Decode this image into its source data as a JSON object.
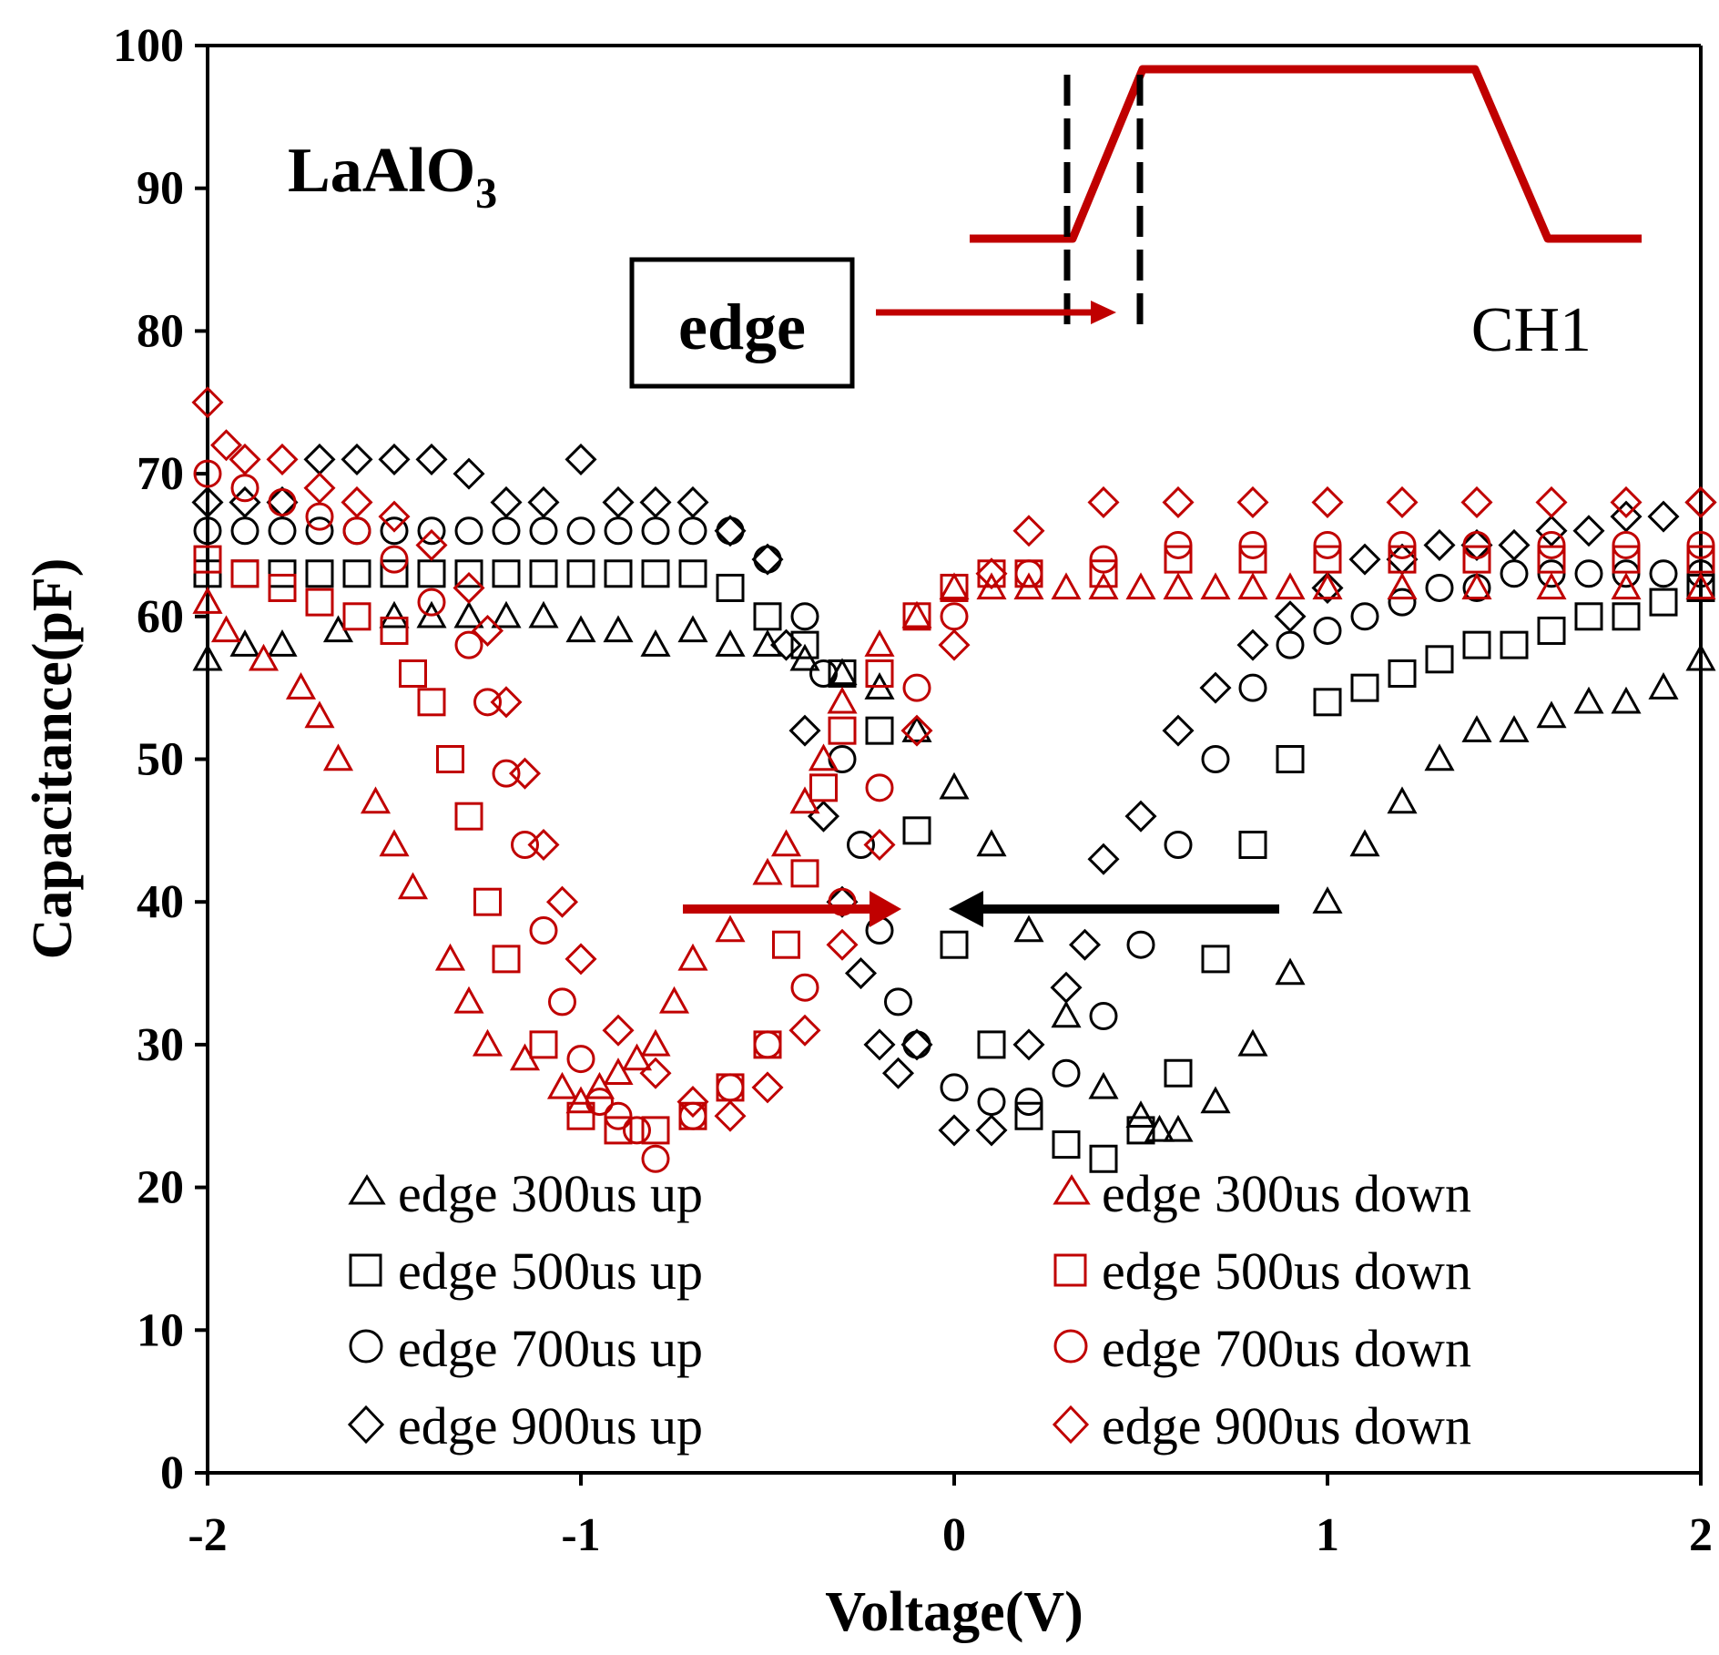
{
  "chart_data": {
    "type": "scatter",
    "title": "",
    "xlabel": "Voltage(V)",
    "ylabel": "Capacitance(pF)",
    "xlim": [
      -2,
      2
    ],
    "ylim": [
      0,
      100
    ],
    "xticks": [
      -2,
      -1,
      0,
      1,
      2
    ],
    "yticks": [
      0,
      10,
      20,
      30,
      40,
      50,
      60,
      70,
      80,
      90,
      100
    ],
    "grid": false,
    "legend_position": "bottom",
    "annotations": {
      "material": "LaAlO",
      "material_subscript": "3",
      "edge_box_label": "edge",
      "channel_label": "CH1"
    },
    "colors": {
      "up": "#000000",
      "down": "#c00000"
    },
    "series": [
      {
        "name": "edge 300us up",
        "marker": "triangle",
        "color": "#000000",
        "x": [
          -2.0,
          -1.9,
          -1.8,
          -1.65,
          -1.5,
          -1.4,
          -1.3,
          -1.2,
          -1.1,
          -1.0,
          -0.9,
          -0.8,
          -0.7,
          -0.6,
          -0.5,
          -0.4,
          -0.3,
          -0.2,
          -0.1,
          0.0,
          0.1,
          0.2,
          0.3,
          0.4,
          0.5,
          0.55,
          0.6,
          0.7,
          0.8,
          0.9,
          1.0,
          1.1,
          1.2,
          1.3,
          1.4,
          1.5,
          1.6,
          1.7,
          1.8,
          1.9,
          2.0
        ],
        "y": [
          57,
          58,
          58,
          59,
          60,
          60,
          60,
          60,
          60,
          59,
          59,
          58,
          59,
          58,
          58,
          57,
          56,
          55,
          52,
          48,
          44,
          38,
          32,
          27,
          25,
          24,
          24,
          26,
          30,
          35,
          40,
          44,
          47,
          50,
          52,
          52,
          53,
          54,
          54,
          55,
          57
        ]
      },
      {
        "name": "edge 500us up",
        "marker": "square",
        "color": "#000000",
        "x": [
          -2.0,
          -1.9,
          -1.8,
          -1.7,
          -1.6,
          -1.5,
          -1.4,
          -1.3,
          -1.2,
          -1.1,
          -1.0,
          -0.9,
          -0.8,
          -0.7,
          -0.6,
          -0.5,
          -0.4,
          -0.3,
          -0.2,
          -0.1,
          0.0,
          0.1,
          0.2,
          0.3,
          0.4,
          0.5,
          0.6,
          0.7,
          0.8,
          0.9,
          1.0,
          1.1,
          1.2,
          1.3,
          1.4,
          1.5,
          1.6,
          1.7,
          1.8,
          1.9,
          2.0
        ],
        "y": [
          63,
          63,
          63,
          63,
          63,
          63,
          63,
          63,
          63,
          63,
          63,
          63,
          63,
          63,
          62,
          60,
          58,
          56,
          52,
          45,
          37,
          30,
          25,
          23,
          22,
          24,
          28,
          36,
          44,
          50,
          54,
          55,
          56,
          57,
          58,
          58,
          59,
          60,
          60,
          61,
          62
        ]
      },
      {
        "name": "edge 700us up",
        "marker": "circle",
        "color": "#000000",
        "x": [
          -2.0,
          -1.9,
          -1.8,
          -1.7,
          -1.6,
          -1.5,
          -1.4,
          -1.3,
          -1.2,
          -1.1,
          -1.0,
          -0.9,
          -0.8,
          -0.7,
          -0.6,
          -0.5,
          -0.4,
          -0.35,
          -0.3,
          -0.25,
          -0.2,
          -0.15,
          -0.1,
          0.0,
          0.1,
          0.2,
          0.3,
          0.4,
          0.5,
          0.6,
          0.7,
          0.8,
          0.9,
          1.0,
          1.1,
          1.2,
          1.3,
          1.4,
          1.5,
          1.6,
          1.7,
          1.8,
          1.9,
          2.0
        ],
        "y": [
          66,
          66,
          66,
          66,
          66,
          66,
          66,
          66,
          66,
          66,
          66,
          66,
          66,
          66,
          66,
          64,
          60,
          56,
          50,
          44,
          38,
          33,
          30,
          27,
          26,
          26,
          28,
          32,
          37,
          44,
          50,
          55,
          58,
          59,
          60,
          61,
          62,
          62,
          63,
          63,
          63,
          63,
          63,
          63
        ]
      },
      {
        "name": "edge 900us up",
        "marker": "diamond",
        "color": "#000000",
        "x": [
          -2.0,
          -1.9,
          -1.8,
          -1.7,
          -1.6,
          -1.5,
          -1.4,
          -1.3,
          -1.2,
          -1.1,
          -1.0,
          -0.9,
          -0.8,
          -0.7,
          -0.6,
          -0.5,
          -0.45,
          -0.4,
          -0.35,
          -0.3,
          -0.25,
          -0.2,
          -0.15,
          -0.1,
          0.0,
          0.1,
          0.2,
          0.3,
          0.35,
          0.4,
          0.5,
          0.6,
          0.7,
          0.8,
          0.9,
          1.0,
          1.1,
          1.2,
          1.3,
          1.4,
          1.5,
          1.6,
          1.7,
          1.8,
          1.9,
          2.0
        ],
        "y": [
          68,
          68,
          68,
          71,
          71,
          71,
          71,
          70,
          68,
          68,
          71,
          68,
          68,
          68,
          66,
          64,
          58,
          52,
          46,
          40,
          35,
          30,
          28,
          30,
          24,
          24,
          30,
          34,
          37,
          43,
          46,
          52,
          55,
          58,
          60,
          62,
          64,
          64,
          65,
          65,
          65,
          66,
          66,
          67,
          67,
          68
        ]
      },
      {
        "name": "edge 300us down",
        "marker": "triangle",
        "color": "#c00000",
        "x": [
          -2.0,
          -1.95,
          -1.85,
          -1.75,
          -1.7,
          -1.65,
          -1.55,
          -1.5,
          -1.45,
          -1.35,
          -1.3,
          -1.25,
          -1.15,
          -1.05,
          -1.0,
          -0.95,
          -0.9,
          -0.85,
          -0.8,
          -0.75,
          -0.7,
          -0.6,
          -0.5,
          -0.45,
          -0.4,
          -0.35,
          -0.3,
          -0.2,
          -0.1,
          0.0,
          0.1,
          0.2,
          0.3,
          0.4,
          0.5,
          0.6,
          0.7,
          0.8,
          0.9,
          1.0,
          1.2,
          1.4,
          1.6,
          1.8,
          2.0
        ],
        "y": [
          61,
          59,
          57,
          55,
          53,
          50,
          47,
          44,
          41,
          36,
          33,
          30,
          29,
          27,
          26,
          27,
          28,
          29,
          30,
          33,
          36,
          38,
          42,
          44,
          47,
          50,
          54,
          58,
          60,
          62,
          62,
          62,
          62,
          62,
          62,
          62,
          62,
          62,
          62,
          62,
          62,
          62,
          62,
          62,
          62
        ]
      },
      {
        "name": "edge 500us down",
        "marker": "square",
        "color": "#c00000",
        "x": [
          -2.0,
          -1.9,
          -1.8,
          -1.7,
          -1.6,
          -1.5,
          -1.45,
          -1.4,
          -1.35,
          -1.3,
          -1.25,
          -1.2,
          -1.1,
          -1.0,
          -0.9,
          -0.8,
          -0.7,
          -0.6,
          -0.5,
          -0.45,
          -0.4,
          -0.35,
          -0.3,
          -0.2,
          -0.1,
          0.0,
          0.1,
          0.2,
          0.4,
          0.6,
          0.8,
          1.0,
          1.2,
          1.4,
          1.6,
          1.8,
          2.0
        ],
        "y": [
          64,
          63,
          62,
          61,
          60,
          59,
          56,
          54,
          50,
          46,
          40,
          36,
          30,
          25,
          24,
          24,
          25,
          27,
          30,
          37,
          42,
          48,
          52,
          56,
          60,
          62,
          63,
          63,
          63,
          64,
          64,
          64,
          64,
          64,
          64,
          64,
          64
        ]
      },
      {
        "name": "edge 700us down",
        "marker": "circle",
        "color": "#c00000",
        "x": [
          -2.0,
          -1.9,
          -1.8,
          -1.7,
          -1.6,
          -1.5,
          -1.4,
          -1.3,
          -1.25,
          -1.2,
          -1.15,
          -1.1,
          -1.05,
          -1.0,
          -0.95,
          -0.9,
          -0.85,
          -0.8,
          -0.7,
          -0.6,
          -0.5,
          -0.4,
          -0.3,
          -0.2,
          -0.1,
          0.0,
          0.2,
          0.4,
          0.6,
          0.8,
          1.0,
          1.2,
          1.4,
          1.6,
          1.8,
          2.0
        ],
        "y": [
          70,
          69,
          68,
          67,
          66,
          64,
          61,
          58,
          54,
          49,
          44,
          38,
          33,
          29,
          26,
          25,
          24,
          22,
          25,
          27,
          30,
          34,
          40,
          48,
          55,
          60,
          63,
          64,
          65,
          65,
          65,
          65,
          65,
          65,
          65,
          65
        ]
      },
      {
        "name": "edge 900us down",
        "marker": "diamond",
        "color": "#c00000",
        "x": [
          -2.0,
          -1.95,
          -1.9,
          -1.8,
          -1.7,
          -1.6,
          -1.5,
          -1.4,
          -1.3,
          -1.25,
          -1.2,
          -1.15,
          -1.1,
          -1.05,
          -1.0,
          -0.9,
          -0.8,
          -0.7,
          -0.6,
          -0.5,
          -0.4,
          -0.3,
          -0.2,
          -0.1,
          0.0,
          0.1,
          0.2,
          0.4,
          0.6,
          0.8,
          1.0,
          1.2,
          1.4,
          1.6,
          1.8,
          2.0
        ],
        "y": [
          75,
          72,
          71,
          71,
          69,
          68,
          67,
          65,
          62,
          59,
          54,
          49,
          44,
          40,
          36,
          31,
          28,
          26,
          25,
          27,
          31,
          37,
          44,
          52,
          58,
          63,
          66,
          68,
          68,
          68,
          68,
          68,
          68,
          68,
          68,
          68
        ]
      }
    ]
  }
}
